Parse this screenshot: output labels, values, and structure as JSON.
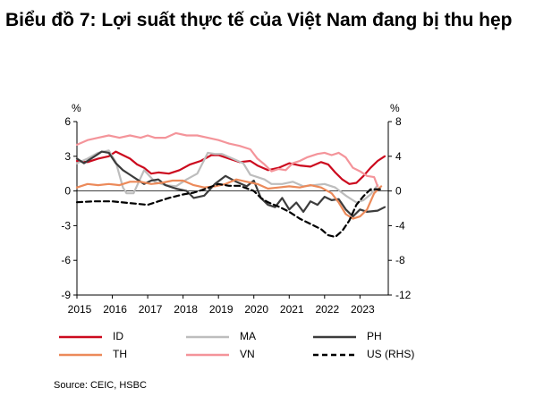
{
  "title": "Biểu đồ 7: Lợi suất thực tế của Việt Nam đang bị thu hẹp",
  "source": "Source: CEIC, HSBC",
  "chart_data": {
    "type": "line",
    "left_axis_label": "%",
    "right_axis_label": "%",
    "ylim": [
      -9,
      6
    ],
    "y2lim": [
      -12,
      8
    ],
    "left_ticks": [
      "6",
      "3",
      "0",
      "-3",
      "-6",
      "-9"
    ],
    "right_ticks": [
      "8",
      "4",
      "0",
      "-4",
      "-8",
      "-12"
    ],
    "x_ticks": [
      "2015",
      "2016",
      "2017",
      "2018",
      "2019",
      "2020",
      "2021",
      "2022",
      "2023"
    ],
    "xlim": [
      2015,
      2023.8
    ],
    "grid": false,
    "legend_position": "bottom",
    "series": [
      {
        "name": "ID",
        "axis": "left",
        "color": "#cc0a1e",
        "dash": "solid",
        "x": [
          2015.0,
          2015.3,
          2015.6,
          2015.9,
          2016.1,
          2016.3,
          2016.5,
          2016.7,
          2016.9,
          2017.1,
          2017.3,
          2017.6,
          2017.9,
          2018.2,
          2018.5,
          2018.8,
          2019.0,
          2019.3,
          2019.6,
          2019.9,
          2020.1,
          2020.4,
          2020.7,
          2021.0,
          2021.3,
          2021.6,
          2021.9,
          2022.1,
          2022.3,
          2022.5,
          2022.7,
          2022.9,
          2023.1,
          2023.3,
          2023.5,
          2023.7
        ],
        "y": [
          2.6,
          2.5,
          2.8,
          3.0,
          3.4,
          3.1,
          2.8,
          2.3,
          2.0,
          1.5,
          1.6,
          1.5,
          1.8,
          2.3,
          2.6,
          3.1,
          3.1,
          2.8,
          2.5,
          2.6,
          2.2,
          1.8,
          2.0,
          2.4,
          2.2,
          2.1,
          2.5,
          2.3,
          1.6,
          1.0,
          0.6,
          0.7,
          1.3,
          2.0,
          2.6,
          3.0
        ]
      },
      {
        "name": "MA",
        "axis": "left",
        "color": "#bdbdbd",
        "dash": "solid",
        "x": [
          2015.0,
          2015.3,
          2015.6,
          2015.9,
          2016.1,
          2016.3,
          2016.4,
          2016.6,
          2016.9,
          2017.2,
          2017.5,
          2017.8,
          2018.1,
          2018.4,
          2018.7,
          2018.9,
          2019.1,
          2019.4,
          2019.7,
          2019.9,
          2020.1,
          2020.3,
          2020.5,
          2020.8,
          2021.1,
          2021.4,
          2021.7,
          2022.0,
          2022.3,
          2022.6,
          2022.9,
          2023.1,
          2023.3,
          2023.5
        ],
        "y": [
          2.4,
          2.8,
          3.3,
          3.5,
          2.5,
          0.3,
          -0.2,
          -0.2,
          1.8,
          0.8,
          0.5,
          0.4,
          1.0,
          1.5,
          3.3,
          3.2,
          3.2,
          2.8,
          2.4,
          1.4,
          1.2,
          1.0,
          0.6,
          0.6,
          0.8,
          0.4,
          0.5,
          0.6,
          0.3,
          -0.4,
          -1.0,
          -0.8,
          -0.3,
          0.5
        ]
      },
      {
        "name": "PH",
        "axis": "left",
        "color": "#3c3c3c",
        "dash": "solid",
        "x": [
          2015.0,
          2015.2,
          2015.5,
          2015.7,
          2015.9,
          2016.1,
          2016.3,
          2016.5,
          2016.7,
          2016.9,
          2017.1,
          2017.3,
          2017.5,
          2017.8,
          2018.1,
          2018.3,
          2018.6,
          2018.9,
          2019.2,
          2019.5,
          2019.8,
          2020.0,
          2020.2,
          2020.4,
          2020.6,
          2020.8,
          2021.0,
          2021.2,
          2021.4,
          2021.6,
          2021.8,
          2022.0,
          2022.2,
          2022.4,
          2022.6,
          2022.8,
          2023.0,
          2023.2,
          2023.5,
          2023.7
        ],
        "y": [
          2.8,
          2.4,
          3.0,
          3.4,
          3.3,
          2.4,
          1.8,
          1.4,
          1.0,
          0.6,
          0.9,
          1.0,
          0.5,
          0.2,
          0.0,
          -0.6,
          -0.4,
          0.6,
          1.3,
          0.8,
          0.4,
          0.9,
          -0.6,
          -1.2,
          -1.4,
          -0.6,
          -1.6,
          -1.0,
          -1.8,
          -0.9,
          -1.2,
          -0.5,
          -0.8,
          -0.7,
          -1.6,
          -2.2,
          -1.6,
          -1.8,
          -1.7,
          -1.4
        ]
      },
      {
        "name": "TH",
        "axis": "left",
        "color": "#ec8a5a",
        "dash": "solid",
        "x": [
          2015.0,
          2015.3,
          2015.6,
          2015.9,
          2016.2,
          2016.5,
          2016.8,
          2017.1,
          2017.4,
          2017.7,
          2018.0,
          2018.3,
          2018.6,
          2018.9,
          2019.2,
          2019.5,
          2019.8,
          2020.1,
          2020.4,
          2020.7,
          2021.0,
          2021.3,
          2021.6,
          2021.9,
          2022.2,
          2022.4,
          2022.6,
          2022.8,
          2023.0,
          2023.2,
          2023.4,
          2023.6
        ],
        "y": [
          0.3,
          0.6,
          0.5,
          0.6,
          0.5,
          0.8,
          0.8,
          0.6,
          0.7,
          0.9,
          0.9,
          0.5,
          0.3,
          0.4,
          0.6,
          1.0,
          0.8,
          0.6,
          0.2,
          0.3,
          0.4,
          0.3,
          0.5,
          0.3,
          -0.2,
          -1.0,
          -2.0,
          -2.4,
          -2.2,
          -1.6,
          -0.2,
          0.4
        ]
      },
      {
        "name": "VN",
        "axis": "left",
        "color": "#f4949a",
        "dash": "solid",
        "x": [
          2015.0,
          2015.3,
          2015.6,
          2015.9,
          2016.2,
          2016.5,
          2016.8,
          2017.0,
          2017.2,
          2017.5,
          2017.8,
          2018.1,
          2018.4,
          2018.7,
          2019.0,
          2019.3,
          2019.6,
          2019.9,
          2020.1,
          2020.3,
          2020.5,
          2020.7,
          2020.9,
          2021.1,
          2021.3,
          2021.5,
          2021.8,
          2022.0,
          2022.2,
          2022.4,
          2022.6,
          2022.8,
          2023.0,
          2023.2,
          2023.4,
          2023.5
        ],
        "y": [
          4.0,
          4.4,
          4.6,
          4.8,
          4.6,
          4.8,
          4.6,
          4.8,
          4.6,
          4.6,
          5.0,
          4.8,
          4.8,
          4.6,
          4.4,
          4.1,
          3.9,
          3.6,
          2.8,
          2.3,
          1.7,
          1.9,
          1.8,
          2.4,
          2.6,
          2.9,
          3.2,
          3.3,
          3.1,
          3.3,
          2.9,
          2.0,
          1.7,
          1.3,
          1.2,
          0.4
        ]
      },
      {
        "name": "US (RHS)",
        "axis": "right",
        "color": "#000000",
        "dash": "dashed",
        "x": [
          2015.0,
          2015.5,
          2016.0,
          2016.5,
          2017.0,
          2017.3,
          2017.6,
          2018.0,
          2018.3,
          2018.6,
          2019.0,
          2019.3,
          2019.6,
          2020.0,
          2020.2,
          2020.4,
          2020.7,
          2021.0,
          2021.3,
          2021.6,
          2021.9,
          2022.1,
          2022.3,
          2022.5,
          2022.7,
          2022.9,
          2023.1,
          2023.3,
          2023.6
        ],
        "y": [
          -1.3,
          -1.2,
          -1.2,
          -1.4,
          -1.6,
          -1.2,
          -0.8,
          -0.4,
          -0.2,
          0.2,
          0.8,
          0.6,
          0.6,
          0.0,
          -0.8,
          -1.3,
          -1.8,
          -2.4,
          -3.2,
          -3.8,
          -4.4,
          -5.1,
          -5.3,
          -4.6,
          -3.4,
          -1.6,
          -0.6,
          0.2,
          0.2
        ]
      }
    ]
  }
}
